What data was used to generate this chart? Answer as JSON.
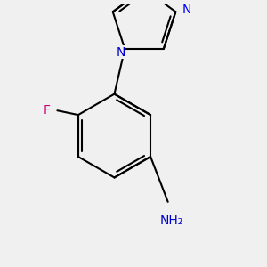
{
  "background_color": "#f0f0f0",
  "bond_color": "#000000",
  "line_width": 1.5,
  "atom_labels": {
    "F": {
      "color": "#cc0077",
      "fontsize": 10,
      "fontweight": "normal"
    },
    "N_blue": {
      "color": "#0000ff",
      "fontsize": 10,
      "fontweight": "normal"
    },
    "N_purple": {
      "color": "#0000cc",
      "fontsize": 10,
      "fontweight": "normal"
    },
    "NH2": {
      "color": "#0000cc",
      "fontsize": 10,
      "fontweight": "normal"
    }
  },
  "figsize": [
    3.0,
    3.0
  ],
  "dpi": 100,
  "xlim": [
    0,
    300
  ],
  "ylim": [
    0,
    300
  ]
}
